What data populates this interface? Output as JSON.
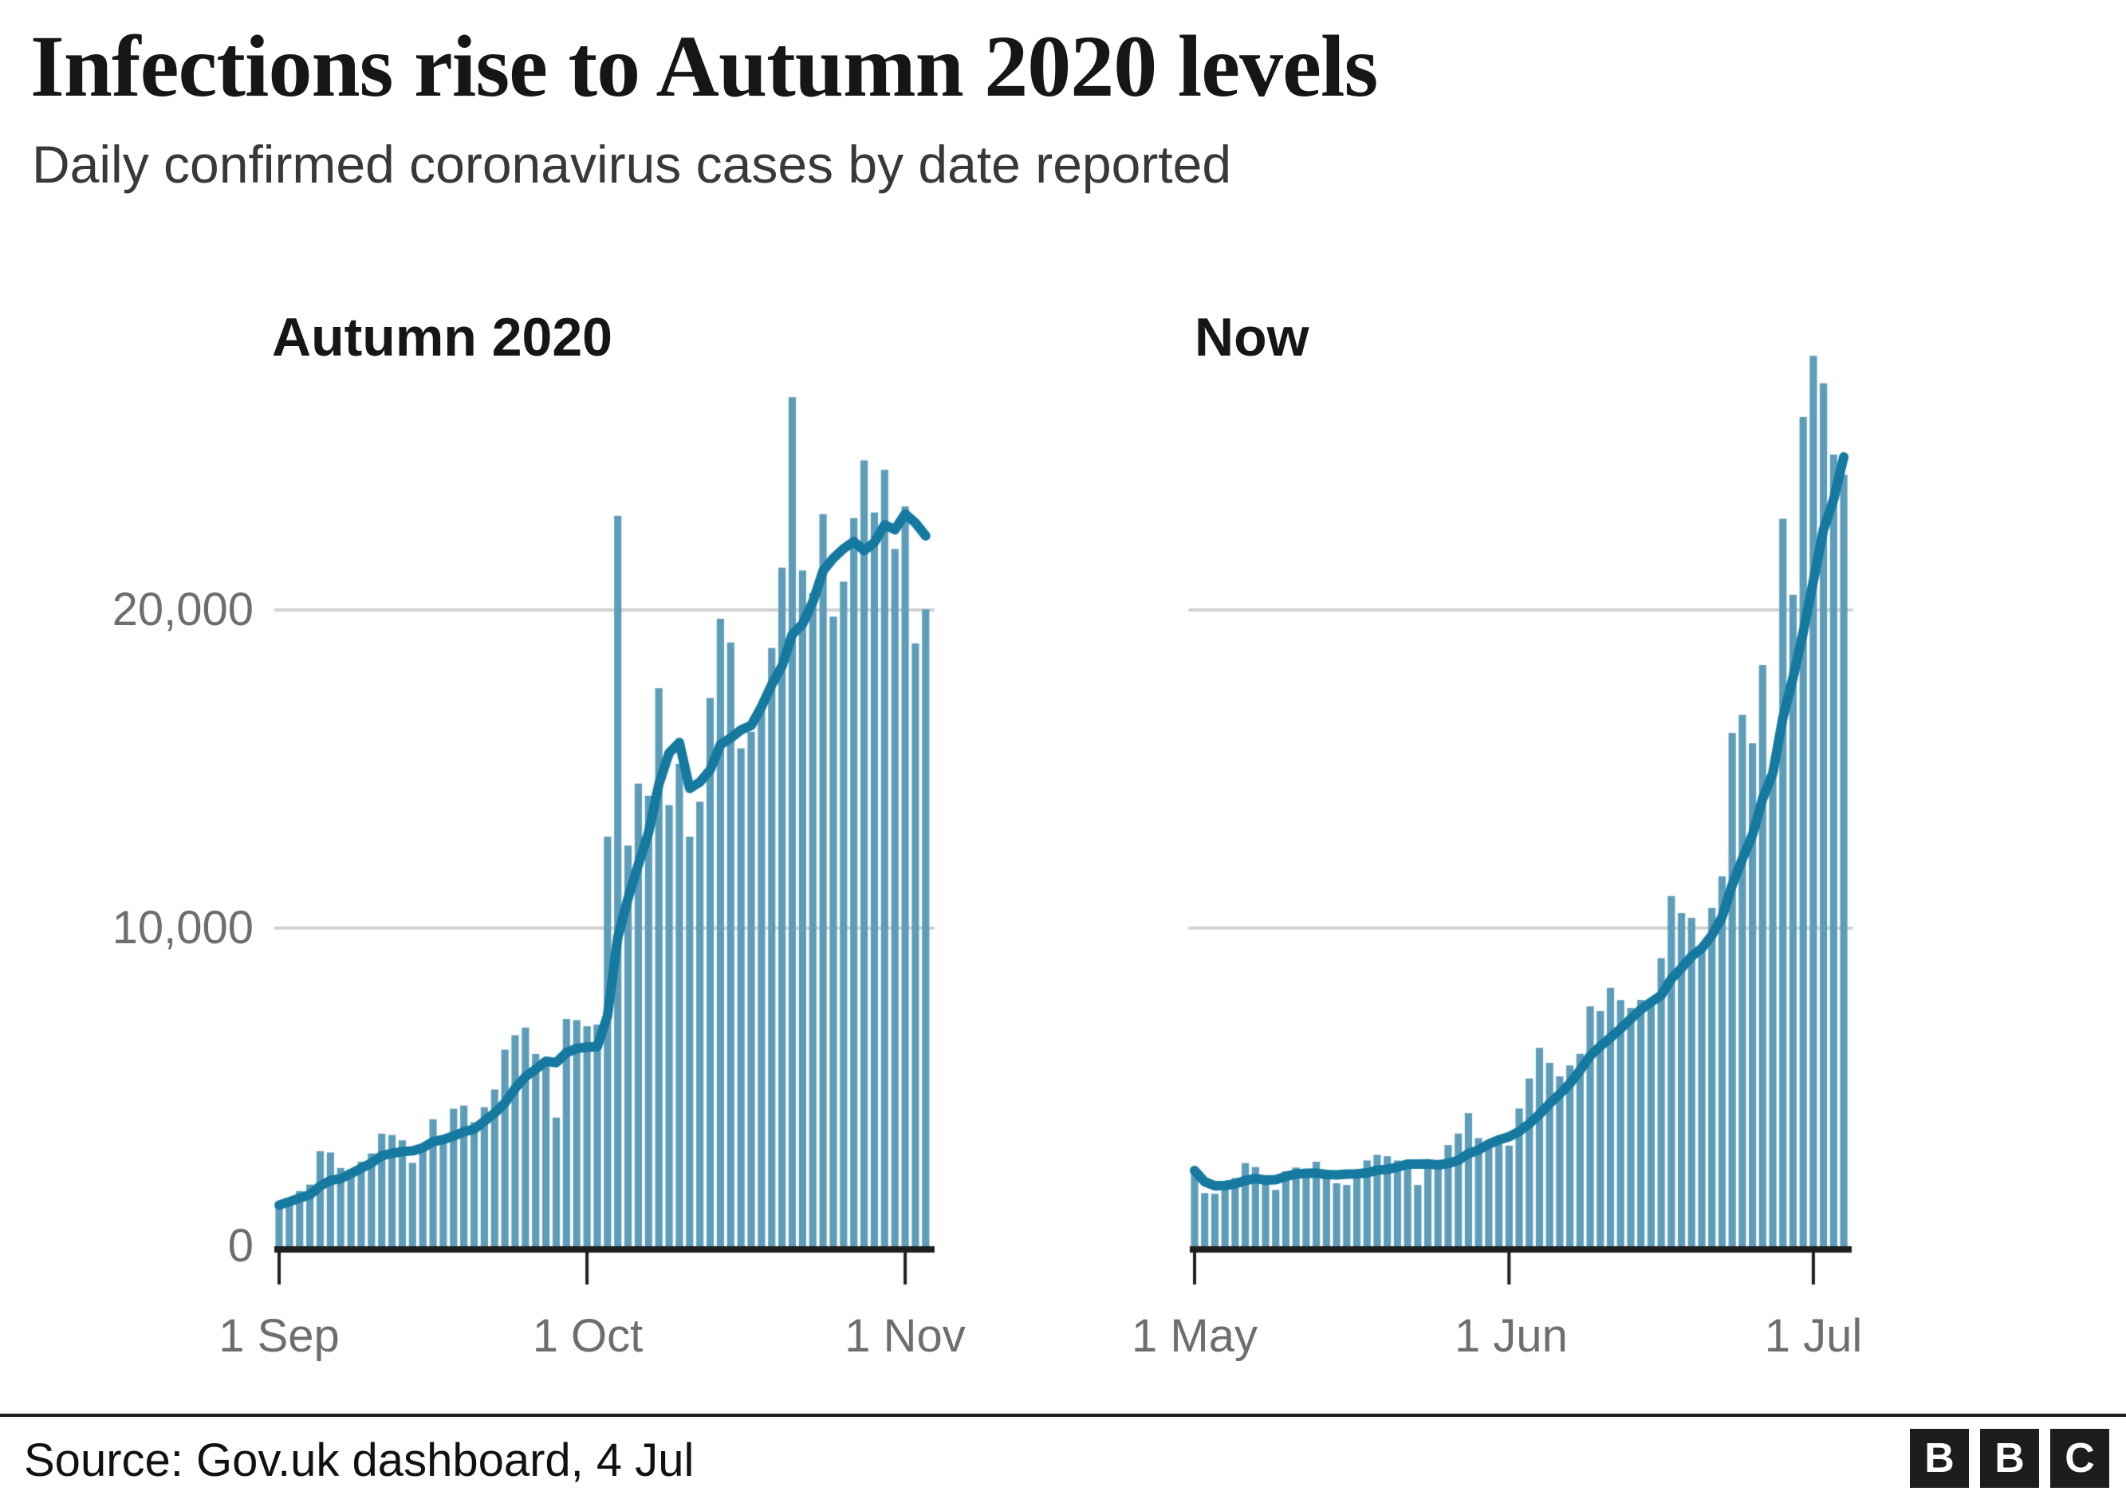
{
  "header": {
    "title": "Infections rise to Autumn 2020 levels",
    "subtitle": "Daily confirmed coronavirus cases by date reported"
  },
  "footer": {
    "source": "Source: Gov.uk dashboard, 4 Jul",
    "logo_letters": [
      "B",
      "B",
      "C"
    ]
  },
  "colors": {
    "bar": "#5e9db9",
    "line": "#1579a0",
    "grid": "#d2d2d2",
    "axis": "#1f1f1f",
    "tick_label": "#6e6e6e"
  },
  "y_axis": {
    "max": 28500,
    "ticks": [
      {
        "value": 0,
        "label": "0"
      },
      {
        "value": 10000,
        "label": "10,000"
      },
      {
        "value": 20000,
        "label": "20,000"
      }
    ]
  },
  "chart_data": [
    {
      "type": "bar",
      "panel_title": "Autumn 2020",
      "period": "1 Sep 2020 to 3 Nov 2020, daily",
      "line_series": "7-day average of values",
      "grid": "on",
      "xticks": [
        {
          "index": 0,
          "label": "1 Sep"
        },
        {
          "index": 30,
          "label": "1 Oct"
        },
        {
          "index": 61,
          "label": "1 Nov"
        }
      ],
      "values": [
        1295,
        1508,
        1735,
        1940,
        2988,
        2948,
        2460,
        2420,
        2659,
        2919,
        3539,
        3497,
        3330,
        2621,
        3105,
        3991,
        3395,
        4322,
        4422,
        3899,
        4368,
        4926,
        6178,
        6634,
        6874,
        6042,
        5693,
        4044,
        7143,
        7108,
        6914,
        6968,
        12872,
        22961,
        12594,
        14542,
        14162,
        17540,
        13864,
        15166,
        12871,
        13972,
        17234,
        19724,
        18980,
        15650,
        16171,
        16982,
        18804,
        21331,
        26688,
        21242,
        20530,
        23012,
        19790,
        20890,
        22885,
        24701,
        23065,
        24405,
        21915,
        23254,
        18950,
        20018
      ]
    },
    {
      "type": "bar",
      "panel_title": "Now",
      "period": "1 May 2021 to 4 Jul 2021, daily",
      "line_series": "7-day average of values",
      "grid": "on",
      "xticks": [
        {
          "index": 0,
          "label": "1 May"
        },
        {
          "index": 31,
          "label": "1 Jun"
        },
        {
          "index": 61,
          "label": "1 Jul"
        }
      ],
      "values": [
        2381,
        1671,
        1649,
        1946,
        2144,
        2613,
        2490,
        2047,
        1770,
        2357,
        2474,
        2284,
        2657,
        2193,
        1979,
        1926,
        2412,
        2696,
        2874,
        2829,
        2694,
        2642,
        1926,
        2439,
        2493,
        3180,
        3542,
        4182,
        3398,
        3240,
        3383,
        3165,
        4330,
        5274,
        6238,
        5765,
        5341,
        5683,
        6048,
        7540,
        7393,
        8125,
        7738,
        7490,
        7742,
        7673,
        9055,
        11007,
        10476,
        10321,
        9284,
        10633,
        11625,
        16135,
        16703,
        15810,
        18270,
        14876,
        22868,
        20479,
        26068,
        27989,
        27125,
        24885,
        24248
      ]
    }
  ]
}
